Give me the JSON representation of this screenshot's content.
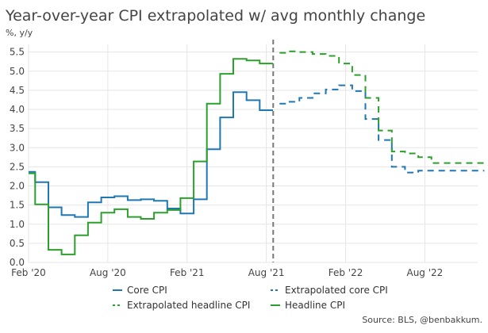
{
  "colors": {
    "core": "#1f77b4",
    "headline": "#2ca02c",
    "divider": "#777777",
    "grid": "#e5e5e5"
  },
  "chart_data": {
    "type": "line",
    "title": "Year-over-year CPI extrapolated w/ avg monthly change",
    "subtitle": "%, y/y",
    "source": "Source: BLS, @benbakkum.",
    "xlim": [
      "2020-02",
      "2022-12"
    ],
    "ylim": [
      0,
      5.7
    ],
    "yticks": [
      0.0,
      0.5,
      1.0,
      1.5,
      2.0,
      2.5,
      3.0,
      3.5,
      4.0,
      4.5,
      5.0,
      5.5
    ],
    "xticks": [
      {
        "date": "2020-02",
        "label": "Feb '20"
      },
      {
        "date": "2020-08",
        "label": "Aug '20"
      },
      {
        "date": "2021-02",
        "label": "Feb '21"
      },
      {
        "date": "2021-08",
        "label": "Aug '21"
      },
      {
        "date": "2022-02",
        "label": "Feb '22"
      },
      {
        "date": "2022-08",
        "label": "Aug '22"
      }
    ],
    "divider_date": "2021-09",
    "grid": true,
    "line_shape": "step",
    "series": [
      {
        "key": "core",
        "name": "Core CPI",
        "style": "solid",
        "dates": [
          "2020-02",
          "2020-03",
          "2020-04",
          "2020-05",
          "2020-06",
          "2020-07",
          "2020-08",
          "2020-09",
          "2020-10",
          "2020-11",
          "2020-12",
          "2021-01",
          "2021-02",
          "2021-03",
          "2021-04",
          "2021-05",
          "2021-06",
          "2021-07",
          "2021-08"
        ],
        "values": [
          2.37,
          2.1,
          1.44,
          1.24,
          1.19,
          1.57,
          1.7,
          1.73,
          1.63,
          1.65,
          1.61,
          1.41,
          1.28,
          1.65,
          2.96,
          3.79,
          4.45,
          4.24,
          3.98
        ]
      },
      {
        "key": "headline",
        "name": "Headline CPI",
        "style": "solid",
        "dates": [
          "2020-02",
          "2020-03",
          "2020-04",
          "2020-05",
          "2020-06",
          "2020-07",
          "2020-08",
          "2020-09",
          "2020-10",
          "2020-11",
          "2020-12",
          "2021-01",
          "2021-02",
          "2021-03",
          "2021-04",
          "2021-05",
          "2021-06",
          "2021-07",
          "2021-08"
        ],
        "values": [
          2.33,
          1.52,
          0.33,
          0.21,
          0.71,
          1.04,
          1.3,
          1.39,
          1.19,
          1.14,
          1.3,
          1.37,
          1.68,
          2.64,
          4.15,
          4.93,
          5.32,
          5.28,
          5.2
        ]
      },
      {
        "key": "core",
        "name": "Extrapolated core CPI",
        "style": "dashed",
        "dates": [
          "2021-09",
          "2021-10",
          "2021-11",
          "2021-12",
          "2022-01",
          "2022-02",
          "2022-03",
          "2022-04",
          "2022-05",
          "2022-06",
          "2022-07",
          "2022-08",
          "2022-09",
          "2022-10",
          "2022-11",
          "2022-12"
        ],
        "values": [
          4.15,
          4.2,
          4.3,
          4.42,
          4.52,
          4.63,
          4.48,
          3.75,
          3.2,
          2.5,
          2.35,
          2.4,
          2.4,
          2.4,
          2.4,
          2.4
        ]
      },
      {
        "key": "headline",
        "name": "Extrapolated headline CPI",
        "style": "dashed",
        "dates": [
          "2021-09",
          "2021-10",
          "2021-11",
          "2021-12",
          "2022-01",
          "2022-02",
          "2022-03",
          "2022-04",
          "2022-05",
          "2022-06",
          "2022-07",
          "2022-08",
          "2022-09",
          "2022-10",
          "2022-11",
          "2022-12"
        ],
        "values": [
          5.48,
          5.52,
          5.5,
          5.45,
          5.4,
          5.2,
          4.9,
          4.3,
          3.45,
          2.9,
          2.85,
          2.75,
          2.6,
          2.6,
          2.6,
          2.6
        ]
      }
    ],
    "legend": {
      "placement": "bottom",
      "items": [
        {
          "label": "Core CPI",
          "key": "core",
          "style": "solid"
        },
        {
          "label": "Extrapolated core CPI",
          "key": "core",
          "style": "dashed"
        },
        {
          "label": "Extrapolated headline CPI",
          "key": "headline",
          "style": "dashed"
        },
        {
          "label": "Headline CPI",
          "key": "headline",
          "style": "solid"
        }
      ]
    }
  }
}
